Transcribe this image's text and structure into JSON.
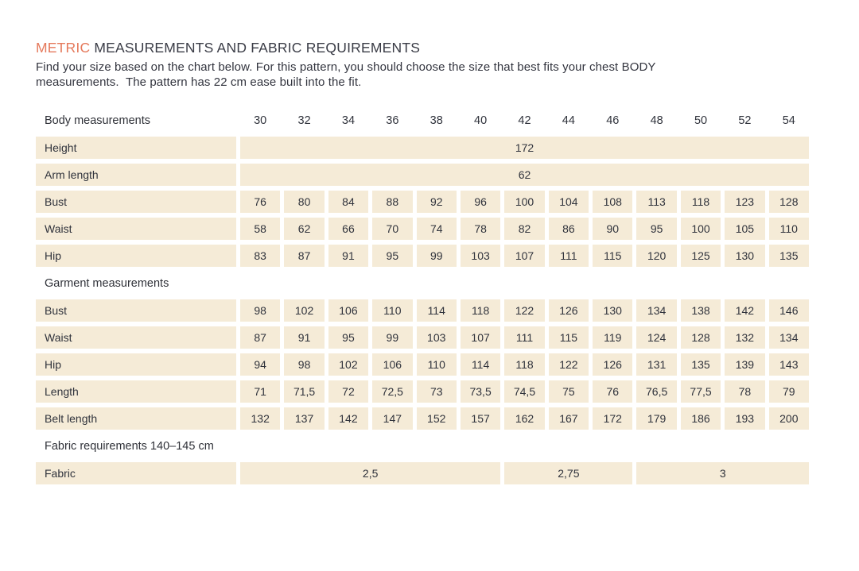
{
  "page": {
    "title_highlight": "METRIC",
    "title_rest": " MEASUREMENTS AND FABRIC REQUIREMENTS",
    "intro_line1": "Find your size based on the chart below. For this pattern, you should choose the size that best fits your chest BODY",
    "intro_line2": "measurements.  The pattern has 22 cm ease built into the fit."
  },
  "colors": {
    "accent": "#E5795B",
    "cell_background": "#F5EBD7",
    "text": "#32343E"
  },
  "table": {
    "sizes": [
      "30",
      "32",
      "34",
      "36",
      "38",
      "40",
      "42",
      "44",
      "46",
      "48",
      "50",
      "52",
      "54"
    ],
    "sections": [
      {
        "header": "Body measurements",
        "show_sizes": true,
        "rows": [
          {
            "label": "Height",
            "span_all": "172"
          },
          {
            "label": "Arm length",
            "span_all": "62"
          },
          {
            "label": "Bust",
            "values": [
              "76",
              "80",
              "84",
              "88",
              "92",
              "96",
              "100",
              "104",
              "108",
              "113",
              "118",
              "123",
              "128"
            ]
          },
          {
            "label": "Waist",
            "values": [
              "58",
              "62",
              "66",
              "70",
              "74",
              "78",
              "82",
              "86",
              "90",
              "95",
              "100",
              "105",
              "110"
            ]
          },
          {
            "label": "Hip",
            "values": [
              "83",
              "87",
              "91",
              "95",
              "99",
              "103",
              "107",
              "111",
              "115",
              "120",
              "125",
              "130",
              "135"
            ]
          }
        ]
      },
      {
        "header": "Garment measurements",
        "show_sizes": false,
        "rows": [
          {
            "label": "Bust",
            "values": [
              "98",
              "102",
              "106",
              "110",
              "114",
              "118",
              "122",
              "126",
              "130",
              "134",
              "138",
              "142",
              "146"
            ]
          },
          {
            "label": "Waist",
            "values": [
              "87",
              "91",
              "95",
              "99",
              "103",
              "107",
              "111",
              "115",
              "119",
              "124",
              "128",
              "132",
              "134"
            ]
          },
          {
            "label": "Hip",
            "values": [
              "94",
              "98",
              "102",
              "106",
              "110",
              "114",
              "118",
              "122",
              "126",
              "131",
              "135",
              "139",
              "143"
            ]
          },
          {
            "label": "Length",
            "values": [
              "71",
              "71,5",
              "72",
              "72,5",
              "73",
              "73,5",
              "74,5",
              "75",
              "76",
              "76,5",
              "77,5",
              "78",
              "79"
            ]
          },
          {
            "label": "Belt length",
            "values": [
              "132",
              "137",
              "142",
              "147",
              "152",
              "157",
              "162",
              "167",
              "172",
              "179",
              "186",
              "193",
              "200"
            ]
          }
        ]
      },
      {
        "header": "Fabric requirements 140–145 cm",
        "show_sizes": false,
        "rows": [
          {
            "label": "Fabric",
            "spans": [
              {
                "cols": 6,
                "value": "2,5"
              },
              {
                "cols": 3,
                "value": "2,75"
              },
              {
                "cols": 4,
                "value": "3"
              }
            ]
          }
        ]
      }
    ]
  }
}
